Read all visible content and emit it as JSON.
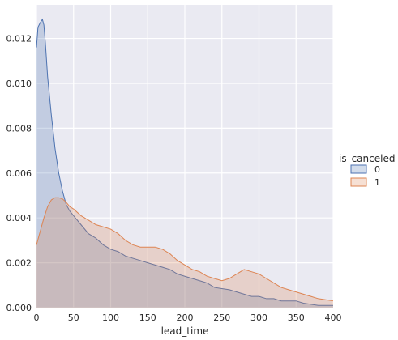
{
  "chart_data": {
    "type": "area",
    "xlabel": "lead_time",
    "ylabel": "",
    "xlim": [
      0,
      400
    ],
    "ylim": [
      0,
      0.0135
    ],
    "x_ticks": [
      0,
      50,
      100,
      150,
      200,
      250,
      300,
      350,
      400
    ],
    "y_ticks": [
      0.0,
      0.002,
      0.004,
      0.006,
      0.008,
      0.01,
      0.012
    ],
    "y_tick_labels": [
      "0.000",
      "0.002",
      "0.004",
      "0.006",
      "0.008",
      "0.010",
      "0.012"
    ],
    "grid": true,
    "legend": {
      "title": "is_canceled",
      "placement": "right"
    },
    "series": [
      {
        "name": "0",
        "color": "#4c72b0",
        "points": [
          [
            0,
            0.0116
          ],
          [
            2,
            0.0125
          ],
          [
            5,
            0.0127
          ],
          [
            8,
            0.01285
          ],
          [
            10,
            0.0126
          ],
          [
            12,
            0.0118
          ],
          [
            15,
            0.0103
          ],
          [
            20,
            0.0086
          ],
          [
            25,
            0.0071
          ],
          [
            30,
            0.006
          ],
          [
            35,
            0.0052
          ],
          [
            40,
            0.0046
          ],
          [
            45,
            0.0043
          ],
          [
            50,
            0.0041
          ],
          [
            60,
            0.0037
          ],
          [
            70,
            0.0033
          ],
          [
            80,
            0.0031
          ],
          [
            90,
            0.0028
          ],
          [
            100,
            0.0026
          ],
          [
            110,
            0.0025
          ],
          [
            120,
            0.0023
          ],
          [
            130,
            0.0022
          ],
          [
            140,
            0.0021
          ],
          [
            150,
            0.002
          ],
          [
            160,
            0.0019
          ],
          [
            170,
            0.0018
          ],
          [
            180,
            0.0017
          ],
          [
            190,
            0.0015
          ],
          [
            200,
            0.0014
          ],
          [
            210,
            0.0013
          ],
          [
            220,
            0.0012
          ],
          [
            230,
            0.0011
          ],
          [
            240,
            0.0009
          ],
          [
            250,
            0.00085
          ],
          [
            260,
            0.0008
          ],
          [
            270,
            0.0007
          ],
          [
            280,
            0.0006
          ],
          [
            290,
            0.0005
          ],
          [
            300,
            0.0005
          ],
          [
            310,
            0.0004
          ],
          [
            320,
            0.0004
          ],
          [
            330,
            0.0003
          ],
          [
            340,
            0.0003
          ],
          [
            350,
            0.0003
          ],
          [
            360,
            0.0002
          ],
          [
            370,
            0.00015
          ],
          [
            380,
            0.0001
          ],
          [
            390,
            0.0001
          ],
          [
            400,
            0.0001
          ]
        ]
      },
      {
        "name": "1",
        "color": "#dd8452",
        "points": [
          [
            0,
            0.0028
          ],
          [
            5,
            0.0034
          ],
          [
            10,
            0.004
          ],
          [
            15,
            0.0045
          ],
          [
            20,
            0.0048
          ],
          [
            25,
            0.0049
          ],
          [
            30,
            0.0049
          ],
          [
            35,
            0.00485
          ],
          [
            40,
            0.0047
          ],
          [
            45,
            0.0045
          ],
          [
            50,
            0.0044
          ],
          [
            60,
            0.0041
          ],
          [
            70,
            0.0039
          ],
          [
            80,
            0.0037
          ],
          [
            90,
            0.0036
          ],
          [
            100,
            0.0035
          ],
          [
            110,
            0.0033
          ],
          [
            120,
            0.003
          ],
          [
            130,
            0.0028
          ],
          [
            140,
            0.0027
          ],
          [
            150,
            0.0027
          ],
          [
            160,
            0.0027
          ],
          [
            170,
            0.0026
          ],
          [
            180,
            0.0024
          ],
          [
            190,
            0.0021
          ],
          [
            200,
            0.0019
          ],
          [
            210,
            0.0017
          ],
          [
            220,
            0.0016
          ],
          [
            230,
            0.0014
          ],
          [
            240,
            0.0013
          ],
          [
            250,
            0.0012
          ],
          [
            260,
            0.0013
          ],
          [
            270,
            0.0015
          ],
          [
            280,
            0.0017
          ],
          [
            290,
            0.0016
          ],
          [
            300,
            0.0015
          ],
          [
            310,
            0.0013
          ],
          [
            320,
            0.0011
          ],
          [
            330,
            0.0009
          ],
          [
            340,
            0.0008
          ],
          [
            350,
            0.0007
          ],
          [
            360,
            0.0006
          ],
          [
            370,
            0.0005
          ],
          [
            380,
            0.0004
          ],
          [
            390,
            0.00035
          ],
          [
            400,
            0.0003
          ]
        ]
      }
    ]
  }
}
